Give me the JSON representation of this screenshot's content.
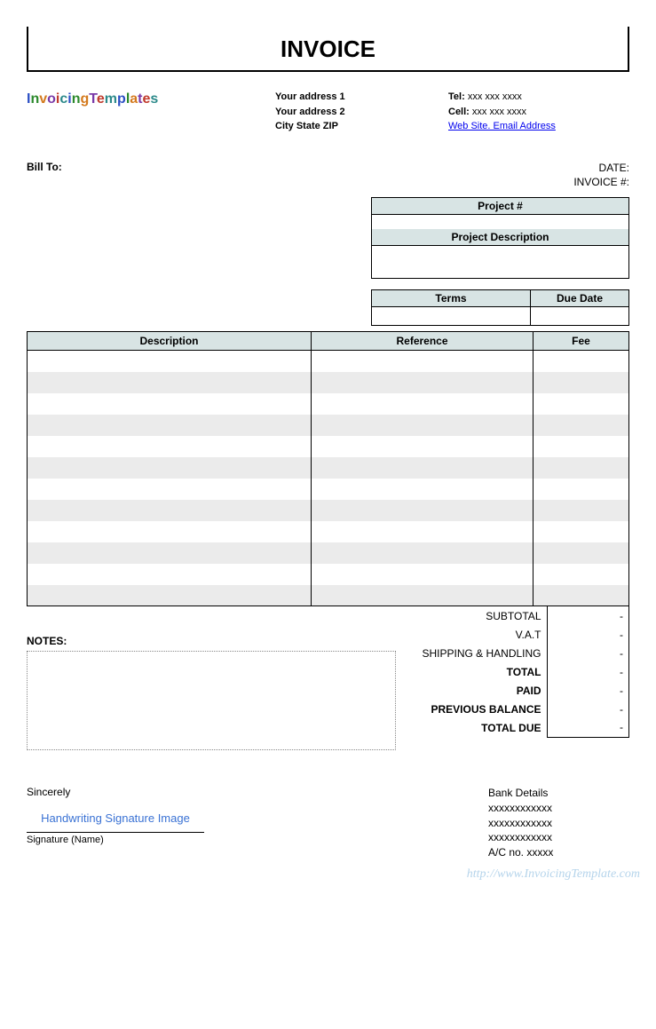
{
  "title": "INVOICE",
  "logo_text": "InvoicingTemplates",
  "address": {
    "line1": "Your address 1",
    "line2": "Your address 2",
    "line3": "City State ZIP"
  },
  "contact": {
    "tel_label": "Tel:",
    "tel_value": "xxx xxx xxxx",
    "cell_label": "Cell:",
    "cell_value": "xxx xxx xxxx",
    "link": "Web Site. Email Address"
  },
  "bill_to_label": "Bill To:",
  "meta": {
    "date_label": "DATE:",
    "invoice_label": "INVOICE #:"
  },
  "project": {
    "num_label": "Project #",
    "num_value": "",
    "desc_label": "Project Description",
    "desc_value": ""
  },
  "terms_due": {
    "terms_label": "Terms",
    "terms_value": "",
    "due_label": "Due Date",
    "due_value": ""
  },
  "columns": {
    "description": "Description",
    "reference": "Reference",
    "fee": "Fee"
  },
  "rows": 12,
  "notes_label": "NOTES:",
  "totals": {
    "subtotal_label": "SUBTOTAL",
    "subtotal_value": "-",
    "vat_label": "V.A.T",
    "vat_value": "-",
    "shipping_label": "SHIPPING & HANDLING",
    "shipping_value": "-",
    "total_label": "TOTAL",
    "total_value": "-",
    "paid_label": "PAID",
    "paid_value": "-",
    "prev_label": "PREVIOUS BALANCE",
    "prev_value": "-",
    "due_label": "TOTAL DUE",
    "due_value": "-"
  },
  "signature": {
    "sincerely": "Sincerely",
    "placeholder": "Handwriting Signature Image",
    "name_label": "Signature (Name)"
  },
  "bank": {
    "header": "Bank Details",
    "line1": "xxxxxxxxxxxx",
    "line2": "xxxxxxxxxxxx",
    "line3": "xxxxxxxxxxxx",
    "line4": "A/C no. xxxxx"
  },
  "watermark": "http://www.InvoicingTemplate.com",
  "colors": {
    "header_bg": "#d8e4e4",
    "stripe": "#ebebeb",
    "link": "#0000ee",
    "sig_blue": "#3a72d4",
    "watermark": "#b5d4eb"
  }
}
